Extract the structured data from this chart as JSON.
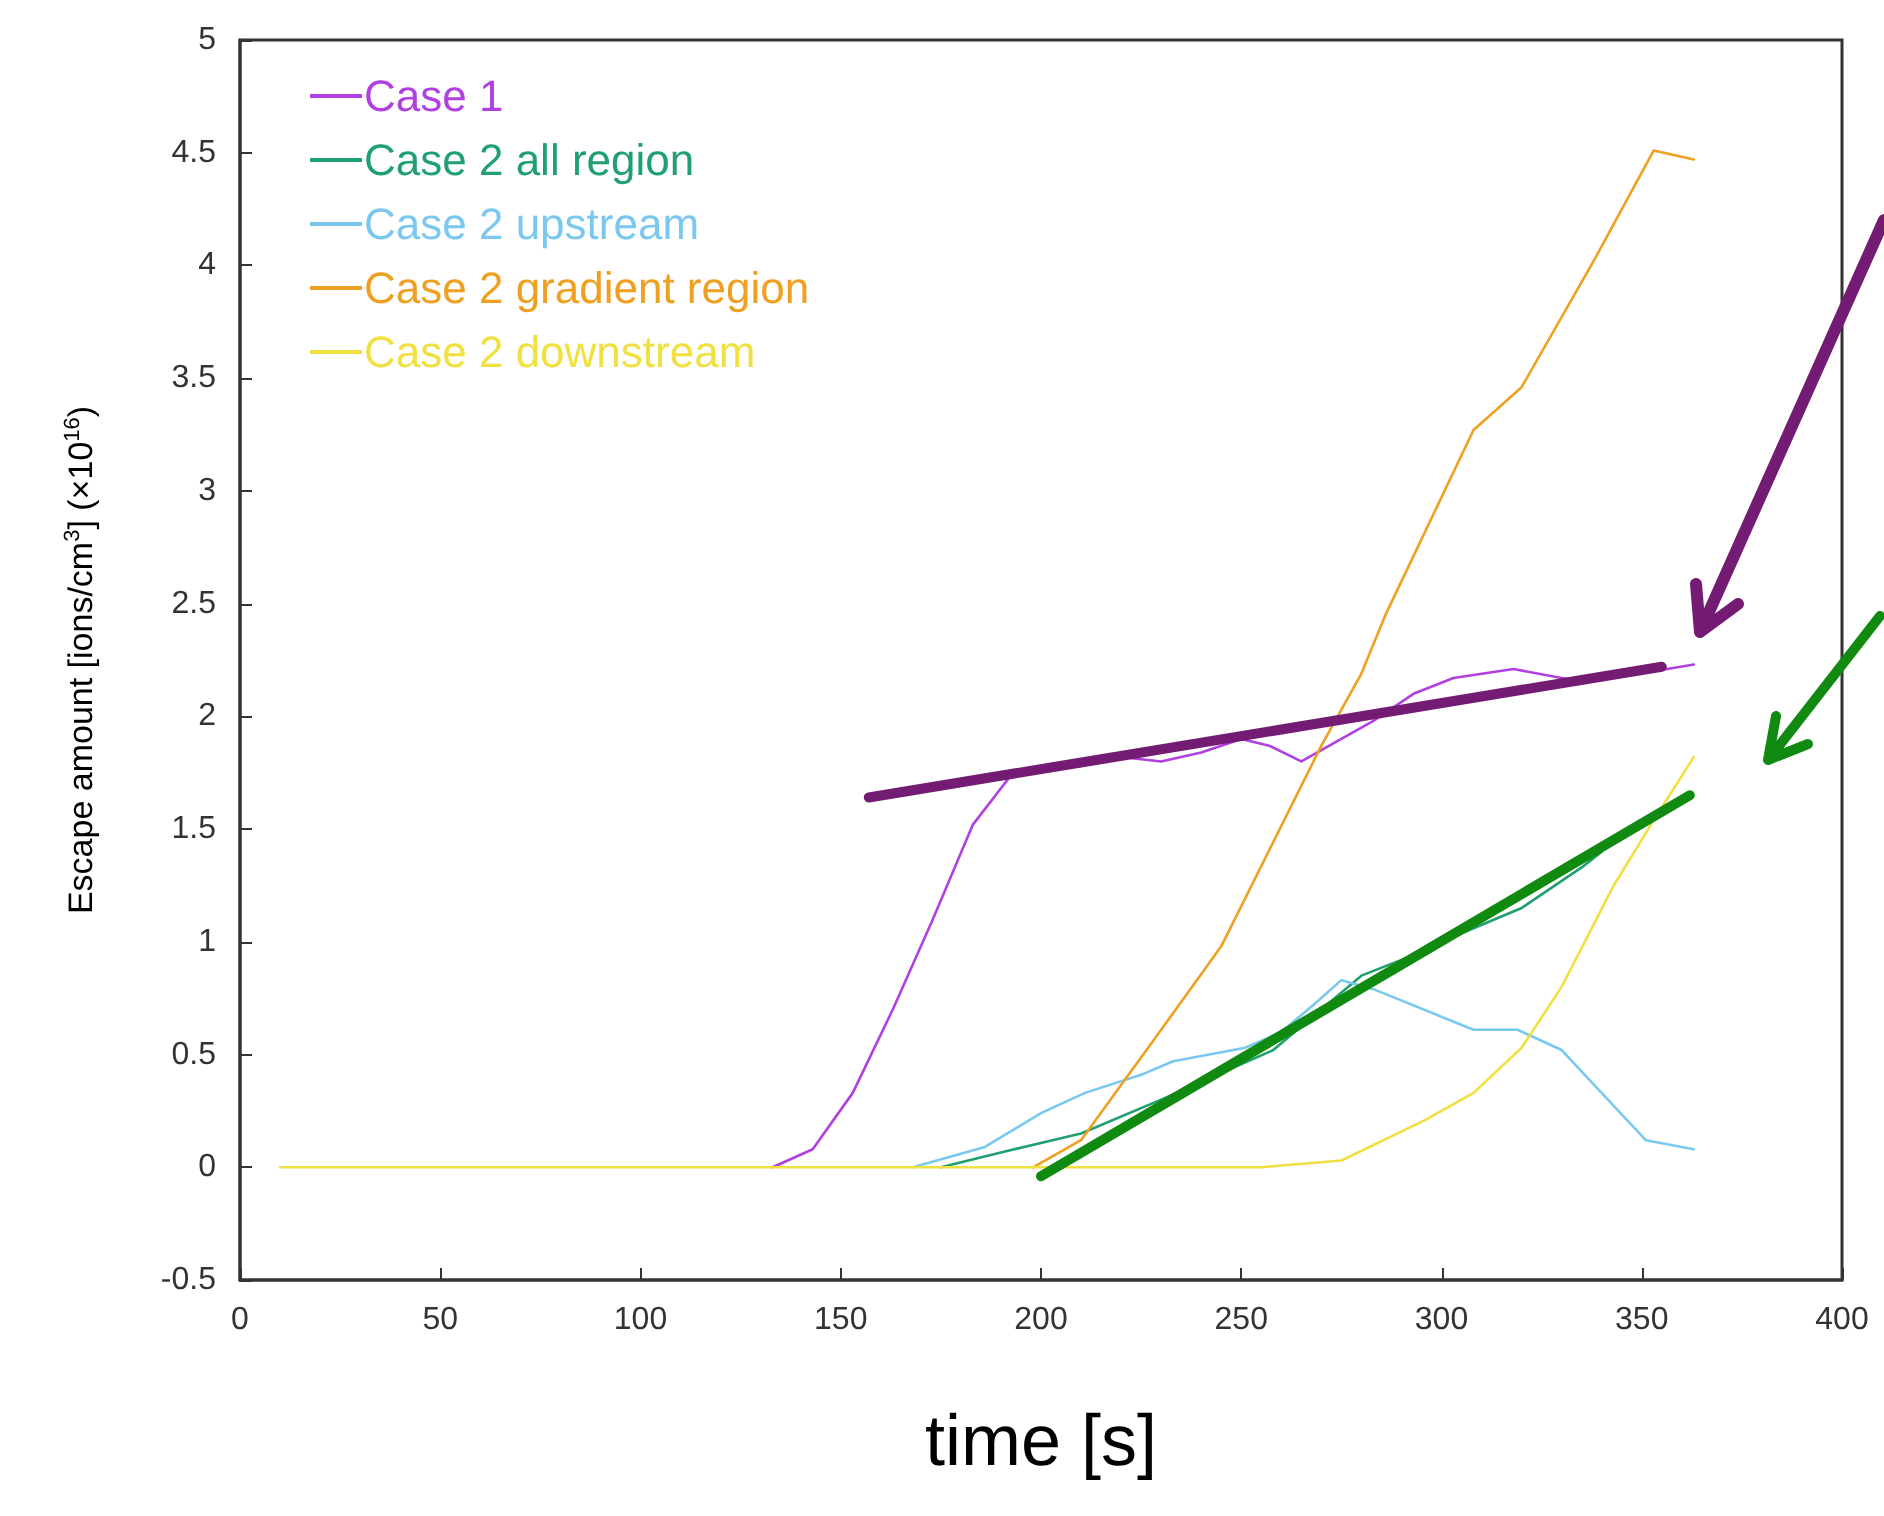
{
  "chart_data": {
    "type": "line",
    "xlabel": "time [s]",
    "ylabel": "Escape amount [ions/cm$^{3}$] (×10$^{16}$)",
    "xlim": [
      0,
      400
    ],
    "xticks": [
      0,
      50,
      100,
      150,
      200,
      250,
      300,
      350,
      400
    ],
    "ylim": [
      -0.5,
      5
    ],
    "yticks": [
      -0.5,
      0,
      0.5,
      1,
      1.5,
      2,
      2.5,
      3,
      3.5,
      4,
      4.5,
      5
    ],
    "grid": false,
    "legend": "top left",
    "marker": "none",
    "line_style": "solid",
    "series": [
      {
        "name": "Case 1",
        "color": "#b040e0",
        "x": [
          133,
          143,
          153,
          163,
          173,
          183,
          193,
          200,
          210,
          220,
          230,
          240,
          250,
          257,
          265,
          273,
          283,
          293,
          303,
          318,
          333,
          343,
          353,
          363
        ],
        "values": [
          0,
          0.08,
          0.33,
          0.7,
          1.1,
          1.52,
          1.75,
          1.77,
          1.78,
          1.82,
          1.8,
          1.84,
          1.9,
          1.87,
          1.8,
          1.88,
          1.98,
          2.1,
          2.17,
          2.21,
          2.16,
          2.18,
          2.2,
          2.23
        ]
      },
      {
        "name": "Case 2 all region",
        "color": "#20a070",
        "x": [
          175,
          191,
          210,
          230,
          258,
          280,
          290,
          300,
          320,
          335,
          340
        ],
        "values": [
          0,
          0.07,
          0.15,
          0.3,
          0.52,
          0.85,
          0.92,
          1.0,
          1.15,
          1.33,
          1.4
        ]
      },
      {
        "name": "Case 2 upstream",
        "color": "#7ac8f0",
        "x": [
          168,
          186,
          200,
          211,
          225,
          233,
          251,
          260,
          268,
          275,
          283,
          308,
          319,
          330,
          351,
          363
        ],
        "values": [
          0,
          0.09,
          0.24,
          0.33,
          0.41,
          0.47,
          0.53,
          0.6,
          0.72,
          0.83,
          0.79,
          0.61,
          0.61,
          0.52,
          0.12,
          0.08
        ]
      },
      {
        "name": "Case 2 gradient region",
        "color": "#f0a020",
        "x": [
          198,
          210,
          230,
          245,
          270,
          280,
          286,
          308,
          320,
          338,
          353,
          363
        ],
        "values": [
          0,
          0.12,
          0.61,
          0.98,
          1.87,
          2.19,
          2.45,
          3.27,
          3.46,
          4.02,
          4.51,
          4.47
        ]
      },
      {
        "name": "Case 2 downstream",
        "color": "#f0e040",
        "x": [
          10,
          255,
          275,
          296,
          308,
          320,
          330,
          343,
          353,
          363
        ],
        "values": [
          0,
          0,
          0.03,
          0.21,
          0.33,
          0.53,
          0.8,
          1.25,
          1.54,
          1.82
        ]
      },
      {
        "color": "#741c74",
        "x": [
          157,
          355
        ],
        "values": [
          1.64,
          2.22
        ]
      },
      {
        "color": "#108a10",
        "x": [
          200,
          362
        ],
        "values": [
          -0.04,
          1.65
        ]
      }
    ]
  }
}
